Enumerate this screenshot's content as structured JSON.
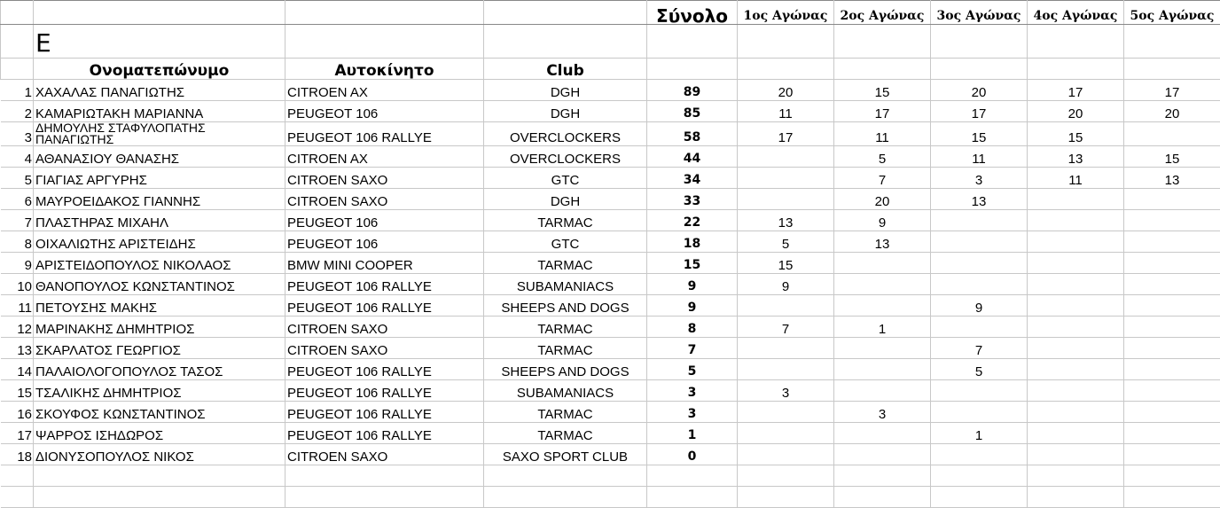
{
  "header": {
    "total": "Σύνολο",
    "races": [
      "1ος Αγώνας",
      "2ος Αγώνας",
      "3ος Αγώνας",
      "4ος Αγώνας",
      "5ος Αγώνας"
    ],
    "category_letter": "Ε",
    "name_col": "Ονοματεπώνυμο",
    "car_col": "Αυτοκίνητο",
    "club_col": "Club"
  },
  "rows": [
    {
      "pos": "1",
      "name": "ΧΑΧΑΛΑΣ ΠΑΝΑΓΙΩΤΗΣ",
      "car": "CITROEN AX",
      "club": "DGH",
      "total": "89",
      "races": [
        "20",
        "15",
        "20",
        "17",
        "17"
      ]
    },
    {
      "pos": "2",
      "name": "ΚΑΜΑΡΙΩΤΑΚΗ ΜΑΡΙΑΝΝΑ",
      "car": "PEUGEOT 106",
      "club": "DGH",
      "total": "85",
      "races": [
        "11",
        "17",
        "17",
        "20",
        "20"
      ]
    },
    {
      "pos": "3",
      "name": "ΔΗΜΟΥΛΗΣ ΣΤΑΦΥΛΟΠΑΤΗΣ ΠΑΝΑΓΙΩΤΗΣ",
      "car": "PEUGEOT 106 RALLYE",
      "club": "OVERCLOCKERS",
      "total": "58",
      "races": [
        "17",
        "11",
        "15",
        "15",
        ""
      ]
    },
    {
      "pos": "4",
      "name": "ΑΘΑΝΑΣΙΟΥ ΘΑΝΑΣΗΣ",
      "car": "CITROEN AX",
      "club": "OVERCLOCKERS",
      "total": "44",
      "races": [
        "",
        "5",
        "11",
        "13",
        "15"
      ]
    },
    {
      "pos": "5",
      "name": "ΓΙΑΓΙΑΣ ΑΡΓΥΡΗΣ",
      "car": "CITROEN SAXO",
      "club": "GTC",
      "total": "34",
      "races": [
        "",
        "7",
        "3",
        "11",
        "13"
      ]
    },
    {
      "pos": "6",
      "name": "ΜΑΥΡΟΕΙΔΑΚΟΣ ΓΙΑΝΝΗΣ",
      "car": "CITROEN SAXO",
      "club": "DGH",
      "total": "33",
      "races": [
        "",
        "20",
        "13",
        "",
        ""
      ]
    },
    {
      "pos": "7",
      "name": "ΠΛΑΣΤΗΡΑΣ ΜΙΧΑΗΛ",
      "car": "PEUGEOT 106",
      "club": "TARMAC",
      "total": "22",
      "races": [
        "13",
        "9",
        "",
        "",
        ""
      ]
    },
    {
      "pos": "8",
      "name": "ΟΙΧΑΛΙΩΤΗΣ ΑΡΙΣΤΕΙΔΗΣ",
      "car": "PEUGEOT 106",
      "club": "GTC",
      "total": "18",
      "races": [
        "5",
        "13",
        "",
        "",
        ""
      ]
    },
    {
      "pos": "9",
      "name": "ΑΡΙΣΤΕΙΔΟΠΟΥΛΟΣ ΝΙΚΟΛΑΟΣ",
      "car": "BMW MINI COOPER",
      "club": "TARMAC",
      "total": "15",
      "races": [
        "15",
        "",
        "",
        "",
        ""
      ]
    },
    {
      "pos": "10",
      "name": "ΘΑΝΟΠΟΥΛΟΣ ΚΩΝΣΤΑΝΤΙΝΟΣ",
      "car": "PEUGEOT 106 RALLYE",
      "club": "SUBAMANIACS",
      "total": "9",
      "races": [
        "9",
        "",
        "",
        "",
        ""
      ]
    },
    {
      "pos": "11",
      "name": "ΠΕΤΟΥΣΗΣ ΜΑΚΗΣ",
      "car": "PEUGEOT 106 RALLYE",
      "club": "SHEEPS AND DOGS",
      "total": "9",
      "races": [
        "",
        "",
        "9",
        "",
        ""
      ]
    },
    {
      "pos": "12",
      "name": "ΜΑΡΙΝΑΚΗΣ ΔΗΜΗΤΡΙΟΣ",
      "car": "CITROEN SAXO",
      "club": "TARMAC",
      "total": "8",
      "races": [
        "7",
        "1",
        "",
        "",
        ""
      ]
    },
    {
      "pos": "13",
      "name": "ΣΚΑΡΛΑΤΟΣ ΓΕΩΡΓΙΟΣ",
      "car": "CITROEN SAXO",
      "club": "TARMAC",
      "total": "7",
      "races": [
        "",
        "",
        "7",
        "",
        ""
      ]
    },
    {
      "pos": "14",
      "name": "ΠΑΛΑΙΟΛΟΓΟΠΟΥΛΟΣ ΤΑΣΟΣ",
      "car": "PEUGEOT 106 RALLYE",
      "club": "SHEEPS AND DOGS",
      "total": "5",
      "races": [
        "",
        "",
        "5",
        "",
        ""
      ]
    },
    {
      "pos": "15",
      "name": "ΤΣΑΛΙΚΗΣ ΔΗΜΗΤΡΙΟΣ",
      "car": "PEUGEOT 106 RALLYE",
      "club": "SUBAMANIACS",
      "total": "3",
      "races": [
        "3",
        "",
        "",
        "",
        ""
      ]
    },
    {
      "pos": "16",
      "name": "ΣΚΟΥΦΟΣ ΚΩΝΣΤΑΝΤΙΝΟΣ",
      "car": "PEUGEOT 106 RALLYE",
      "club": "TARMAC",
      "total": "3",
      "races": [
        "",
        "3",
        "",
        "",
        ""
      ]
    },
    {
      "pos": "17",
      "name": "ΨΑΡΡΟΣ ΙΣΗΔΩΡΟΣ",
      "car": "PEUGEOT 106 RALLYE",
      "club": "TARMAC",
      "total": "1",
      "races": [
        "",
        "",
        "1",
        "",
        ""
      ]
    },
    {
      "pos": "18",
      "name": "ΔΙΟΝΥΣΟΠΟΥΛΟΣ ΝΙΚΟΣ",
      "car": "CITROEN SAXO",
      "club": "SAXO SPORT CLUB",
      "total": "0",
      "races": [
        "",
        "",
        "",
        "",
        ""
      ]
    }
  ]
}
